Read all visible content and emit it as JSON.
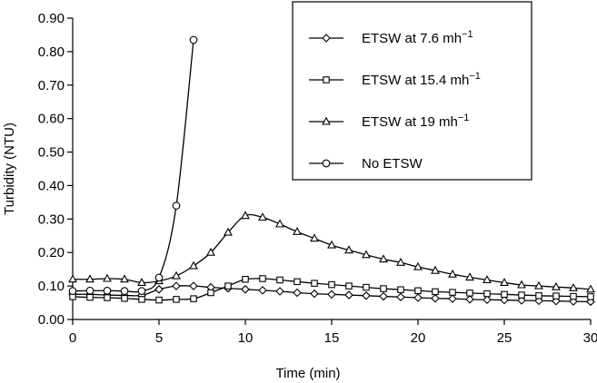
{
  "chart_data": {
    "type": "line",
    "title": "",
    "xlabel": "Time (min)",
    "ylabel": "Turbidity (NTU)",
    "xlim": [
      0,
      30
    ],
    "ylim": [
      0,
      0.9
    ],
    "x_ticks": [
      "0",
      "5",
      "10",
      "15",
      "20",
      "25",
      "30"
    ],
    "y_ticks": [
      "0.00",
      "0.10",
      "0.20",
      "0.30",
      "0.40",
      "0.50",
      "0.60",
      "0.70",
      "0.80",
      "0.90"
    ],
    "grid": false,
    "legend_position": "top-right",
    "series": [
      {
        "name": "ETSW at 7.6 mh",
        "name_sup": "−1",
        "marker": "diamond",
        "x": [
          0,
          1,
          2,
          3,
          4,
          5,
          6,
          7,
          8,
          9,
          10,
          11,
          12,
          13,
          14,
          15,
          16,
          17,
          18,
          19,
          20,
          21,
          22,
          23,
          24,
          25,
          26,
          27,
          28,
          29,
          30
        ],
        "y": [
          0.075,
          0.075,
          0.073,
          0.072,
          0.072,
          0.09,
          0.1,
          0.1,
          0.096,
          0.093,
          0.09,
          0.087,
          0.084,
          0.08,
          0.077,
          0.075,
          0.073,
          0.071,
          0.069,
          0.067,
          0.065,
          0.063,
          0.062,
          0.06,
          0.059,
          0.058,
          0.057,
          0.056,
          0.055,
          0.054,
          0.053
        ]
      },
      {
        "name": "ETSW at 15.4 mh",
        "name_sup": "−1",
        "marker": "square",
        "x": [
          0,
          1,
          2,
          3,
          4,
          5,
          6,
          7,
          8,
          9,
          10,
          11,
          12,
          13,
          14,
          15,
          16,
          17,
          18,
          19,
          20,
          21,
          22,
          23,
          24,
          25,
          26,
          27,
          28,
          29,
          30
        ],
        "y": [
          0.068,
          0.066,
          0.065,
          0.063,
          0.06,
          0.058,
          0.06,
          0.062,
          0.08,
          0.1,
          0.12,
          0.122,
          0.118,
          0.113,
          0.108,
          0.104,
          0.1,
          0.096,
          0.092,
          0.089,
          0.086,
          0.083,
          0.081,
          0.079,
          0.077,
          0.075,
          0.073,
          0.071,
          0.07,
          0.069,
          0.068
        ]
      },
      {
        "name": "ETSW at 19 mh",
        "name_sup": "−1",
        "marker": "triangle",
        "x": [
          0,
          1,
          2,
          3,
          4,
          5,
          6,
          7,
          8,
          9,
          10,
          11,
          12,
          13,
          14,
          15,
          16,
          17,
          18,
          19,
          20,
          21,
          22,
          23,
          24,
          25,
          26,
          27,
          28,
          29,
          30
        ],
        "y": [
          0.12,
          0.12,
          0.122,
          0.12,
          0.11,
          0.115,
          0.13,
          0.16,
          0.2,
          0.26,
          0.31,
          0.305,
          0.285,
          0.262,
          0.242,
          0.222,
          0.207,
          0.193,
          0.18,
          0.17,
          0.157,
          0.146,
          0.135,
          0.126,
          0.118,
          0.11,
          0.103,
          0.1,
          0.097,
          0.094,
          0.09
        ]
      },
      {
        "name": "No ETSW",
        "name_sup": "",
        "marker": "circle",
        "x": [
          0,
          1,
          2,
          3,
          4,
          5,
          6,
          7
        ],
        "y": [
          0.085,
          0.086,
          0.086,
          0.085,
          0.085,
          0.125,
          0.34,
          0.835
        ]
      }
    ]
  }
}
